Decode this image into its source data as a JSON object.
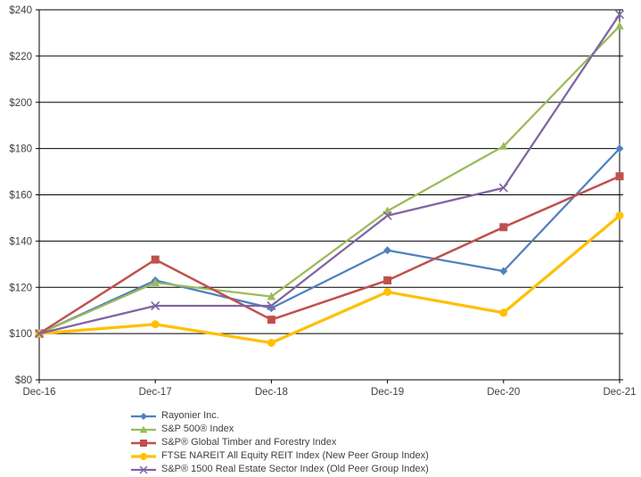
{
  "chart_data": {
    "type": "line",
    "title": "",
    "xlabel": "",
    "ylabel": "",
    "grid": true,
    "legend_position": "bottom-left",
    "categories": [
      "Dec-16",
      "Dec-17",
      "Dec-18",
      "Dec-19",
      "Dec-20",
      "Dec-21"
    ],
    "y_axis": {
      "min": 80,
      "max": 240,
      "step": 20,
      "tick_labels": [
        "$80",
        "$100",
        "$120",
        "$140",
        "$160",
        "$180",
        "$200",
        "$220",
        "$240"
      ]
    },
    "series": [
      {
        "name": "Rayonier Inc.",
        "color": "#4F81BD",
        "marker": "diamond",
        "line_width": 2.25,
        "values": [
          100,
          123,
          111,
          136,
          127,
          180
        ]
      },
      {
        "name": "S&P 500® Index",
        "color": "#9BBB59",
        "marker": "triangle",
        "line_width": 2.25,
        "values": [
          100,
          122,
          116,
          153,
          181,
          233
        ]
      },
      {
        "name": "S&P® Global Timber and Forestry Index",
        "color": "#C0504D",
        "marker": "square",
        "line_width": 2.5,
        "values": [
          100,
          132,
          106,
          123,
          146,
          168
        ]
      },
      {
        "name": "FTSE NAREIT All Equity REIT Index (New Peer Group Index)",
        "color": "#FFC000",
        "marker": "circle",
        "line_width": 3.25,
        "values": [
          100,
          104,
          96,
          118,
          109,
          151
        ]
      },
      {
        "name": "S&P® 1500 Real Estate Sector Index (Old Peer Group Index)",
        "color": "#8064A2",
        "marker": "x",
        "line_width": 2.25,
        "values": [
          100,
          112,
          112,
          151,
          163,
          238
        ]
      }
    ],
    "colors": {
      "axis_line": "#000000",
      "gridline": "#000000",
      "text": "#404040",
      "background": "#ffffff"
    }
  }
}
